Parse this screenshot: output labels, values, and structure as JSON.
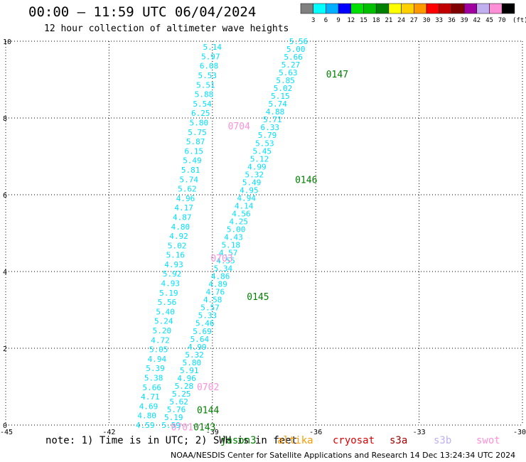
{
  "title": "00:00 – 11:59 UTC 06/04/2024",
  "subtitle": "12 hour collection of altimeter wave heights",
  "note": "note: 1) Time is in UTC; 2) SWH is in feet",
  "credit": "NOAA/NESDIS Center for Satellite Applications and Research    14 Dec 13:24:34 UTC 2024",
  "missions": [
    {
      "name": "jason3",
      "color": "#008000"
    },
    {
      "name": "altika",
      "color": "#ff9900"
    },
    {
      "name": "cryosat",
      "color": "#e00000"
    },
    {
      "name": "s3a",
      "color": "#a00000"
    },
    {
      "name": "s3b",
      "color": "#c0b0f0"
    },
    {
      "name": "swot",
      "color": "#ff90d8"
    }
  ],
  "colorbar": {
    "unit": "(ft)",
    "ticks": [
      "3",
      "6",
      "9",
      "12",
      "15",
      "18",
      "21",
      "24",
      "27",
      "30",
      "33",
      "36",
      "39",
      "42",
      "45",
      "70"
    ],
    "colors": [
      "#808080",
      "#00ffff",
      "#00b0ff",
      "#0000ff",
      "#00e000",
      "#00c000",
      "#008000",
      "#ffff00",
      "#ffd000",
      "#ff9900",
      "#ff0000",
      "#c00000",
      "#800000",
      "#a000a0",
      "#c0b0f0",
      "#ff90d8",
      "#000000"
    ]
  },
  "chart_data": {
    "type": "scatter",
    "xlim": [
      -45,
      -30
    ],
    "ylim": [
      0,
      10
    ],
    "xticks": [
      -45,
      -42,
      -39,
      -36,
      -33,
      -30
    ],
    "xticklabels": [
      "-45",
      "-42",
      "-39",
      "-36",
      "-33",
      "-30"
    ],
    "yticks": [
      0,
      2,
      4,
      6,
      8,
      10
    ],
    "yticklabels": [
      "0",
      "2",
      "4",
      "6",
      "8",
      "10"
    ],
    "grid": true,
    "point_color": "#00e0ff",
    "series": [
      {
        "name": "swot",
        "color": "#00e0ff",
        "start": [
          -39.0,
          9.85
        ],
        "end": [
          -40.95,
          0.0
        ],
        "values": [
          "5.14",
          "5.97",
          "6.08",
          "5.53",
          "5.51",
          "5.88",
          "5.54",
          "6.25",
          "5.80",
          "5.75",
          "5.87",
          "6.15",
          "5.49",
          "5.81",
          "5.74",
          "5.62",
          "4.96",
          "4.17",
          "4.87",
          "4.80",
          "4.92",
          "5.02",
          "5.16",
          "4.93",
          "5.92",
          "4.93",
          "5.19",
          "5.56",
          "5.40",
          "5.24",
          "5.20",
          "4.72",
          "5.05",
          "4.94",
          "5.39",
          "5.38",
          "5.66",
          "4.71",
          "4.69",
          "4.80",
          "4.59"
        ]
      },
      {
        "name": "jason3",
        "color": "#00e0ff",
        "start": [
          -36.5,
          10.0
        ],
        "end": [
          -40.2,
          0.0
        ],
        "values": [
          "5.56",
          "5.00",
          "5.66",
          "5.27",
          "5.63",
          "5.85",
          "5.02",
          "5.15",
          "5.74",
          "4.88",
          "5.71",
          "6.33",
          "5.79",
          "5.53",
          "5.45",
          "5.12",
          "4.99",
          "5.32",
          "5.49",
          "4.95",
          "4.94",
          "4.14",
          "4.56",
          "4.25",
          "5.00",
          "4.43",
          "5.18",
          "4.57",
          "4.55",
          "5.34",
          "4.86",
          "4.89",
          "4.76",
          "4.58",
          "5.57",
          "5.33",
          "5.46",
          "5.69",
          "5.64",
          "4.99",
          "5.32",
          "5.80",
          "5.91",
          "4.96",
          "5.28",
          "5.25",
          "5.62",
          "5.76",
          "5.19",
          "5.59"
        ]
      }
    ],
    "pass_labels": [
      {
        "text": "0147",
        "x": -35.7,
        "y": 9.15,
        "color": "#008000"
      },
      {
        "text": "0704",
        "x": -38.55,
        "y": 7.8,
        "color": "#ff90d8"
      },
      {
        "text": "0146",
        "x": -36.6,
        "y": 6.4,
        "color": "#008000"
      },
      {
        "text": "0703",
        "x": -39.05,
        "y": 4.35,
        "color": "#ff90d8"
      },
      {
        "text": "0145",
        "x": -38.0,
        "y": 3.35,
        "color": "#008000"
      },
      {
        "text": "0702",
        "x": -39.45,
        "y": 1.0,
        "color": "#ff90d8"
      },
      {
        "text": "0144",
        "x": -39.45,
        "y": 0.4,
        "color": "#008000"
      },
      {
        "text": "0701",
        "x": -40.2,
        "y": -0.05,
        "color": "#ff90d8"
      },
      {
        "text": "0143",
        "x": -39.55,
        "y": -0.05,
        "color": "#008000"
      }
    ]
  }
}
